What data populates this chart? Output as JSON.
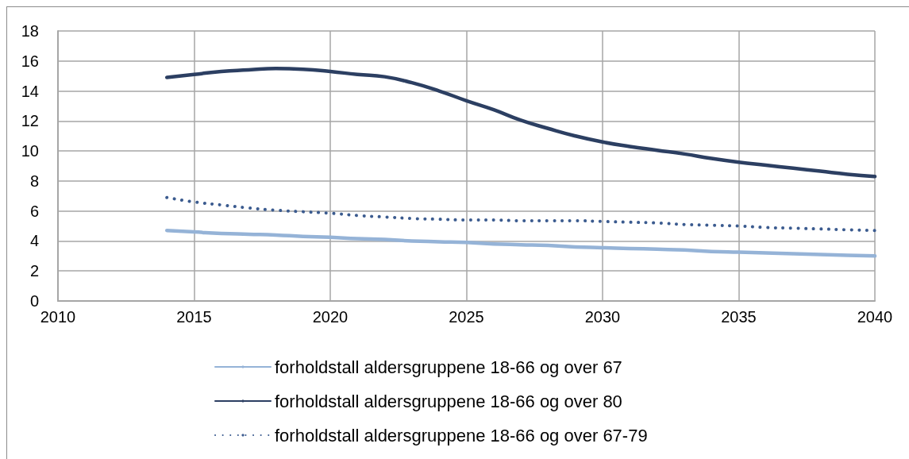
{
  "chart_data": {
    "type": "line",
    "x": [
      2014,
      2015,
      2016,
      2017,
      2018,
      2019,
      2020,
      2021,
      2022,
      2023,
      2024,
      2025,
      2026,
      2027,
      2028,
      2029,
      2030,
      2031,
      2032,
      2033,
      2034,
      2035,
      2036,
      2037,
      2038,
      2039,
      2040
    ],
    "xlim": [
      2010,
      2040
    ],
    "xticks": [
      2010,
      2015,
      2020,
      2025,
      2030,
      2035,
      2040
    ],
    "ylim": [
      0,
      18
    ],
    "yticks": [
      0,
      2,
      4,
      6,
      8,
      10,
      12,
      14,
      16,
      18
    ],
    "grid": true,
    "legend": "bottom",
    "marker": "none",
    "series": [
      {
        "name": "forholdstall aldersgruppene 18-66 og over 67",
        "color": "#95b3d7",
        "line_style": "solid",
        "values": [
          4.7,
          4.6,
          4.5,
          4.45,
          4.4,
          4.3,
          4.25,
          4.15,
          4.1,
          4.0,
          3.95,
          3.9,
          3.8,
          3.75,
          3.7,
          3.6,
          3.55,
          3.5,
          3.45,
          3.4,
          3.3,
          3.25,
          3.2,
          3.15,
          3.1,
          3.05,
          3.0
        ]
      },
      {
        "name": "forholdstall aldersgruppene 18-66 og over 80",
        "color": "#2c3f62",
        "line_style": "solid",
        "values": [
          14.9,
          15.1,
          15.3,
          15.4,
          15.5,
          15.45,
          15.3,
          15.1,
          14.95,
          14.55,
          14.0,
          13.35,
          12.75,
          12.05,
          11.5,
          11.0,
          10.6,
          10.3,
          10.05,
          9.8,
          9.5,
          9.25,
          9.05,
          8.85,
          8.65,
          8.45,
          8.3
        ]
      },
      {
        "name": "forholdstall aldersgruppene 18-66 og over 67-79",
        "color": "#3b5b8f",
        "line_style": "dotted",
        "values": [
          6.9,
          6.6,
          6.4,
          6.2,
          6.05,
          5.95,
          5.85,
          5.7,
          5.6,
          5.5,
          5.45,
          5.4,
          5.4,
          5.35,
          5.35,
          5.35,
          5.3,
          5.25,
          5.2,
          5.1,
          5.05,
          5.0,
          4.9,
          4.85,
          4.8,
          4.75,
          4.7
        ]
      }
    ]
  }
}
